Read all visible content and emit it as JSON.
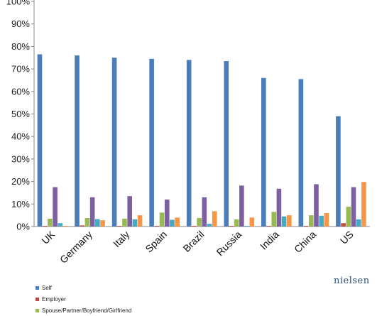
{
  "chart_data": {
    "type": "bar",
    "categories": [
      "UK",
      "Germany",
      "Italy",
      "Spain",
      "Brazil",
      "Russia",
      "India",
      "China",
      "US"
    ],
    "ylim": [
      0,
      100
    ],
    "yticks": [
      "0%",
      "10%",
      "20%",
      "30%",
      "40%",
      "50%",
      "60%",
      "70%",
      "80%",
      "90%",
      "100%"
    ],
    "grid": false,
    "legend_position": "bottom-left",
    "series": [
      {
        "name": "Self",
        "color": "#4a7ebb",
        "values": [
          76.5,
          76,
          75,
          74.5,
          74,
          73.5,
          66,
          65.5,
          49
        ]
      },
      {
        "name": "Employer",
        "color": "#be4b48",
        "values": [
          0.3,
          0.5,
          0.3,
          0.3,
          0.3,
          0.3,
          0.3,
          0.3,
          1.5
        ]
      },
      {
        "name": "Spouse/Partner/Boyfriend/Girlfriend",
        "color": "#98b954",
        "values": [
          3.5,
          3.8,
          3.5,
          6.2,
          3.8,
          3.2,
          6.5,
          5,
          8.8
        ]
      },
      {
        "name": "",
        "color": "#7d60a0",
        "values": [
          17.5,
          13,
          13.5,
          12,
          13,
          18.2,
          16.8,
          18.8,
          17.5
        ]
      },
      {
        "name": "",
        "color": "#46aac5",
        "values": [
          1.5,
          3.3,
          3.2,
          3,
          1.2,
          0.3,
          4.5,
          4.8,
          3.2
        ]
      },
      {
        "name": "",
        "color": "#f79646",
        "values": [
          0.3,
          2.8,
          5,
          4,
          6.8,
          4,
          5,
          6,
          19.8
        ]
      }
    ]
  },
  "logo": {
    "text": "nielsen"
  }
}
